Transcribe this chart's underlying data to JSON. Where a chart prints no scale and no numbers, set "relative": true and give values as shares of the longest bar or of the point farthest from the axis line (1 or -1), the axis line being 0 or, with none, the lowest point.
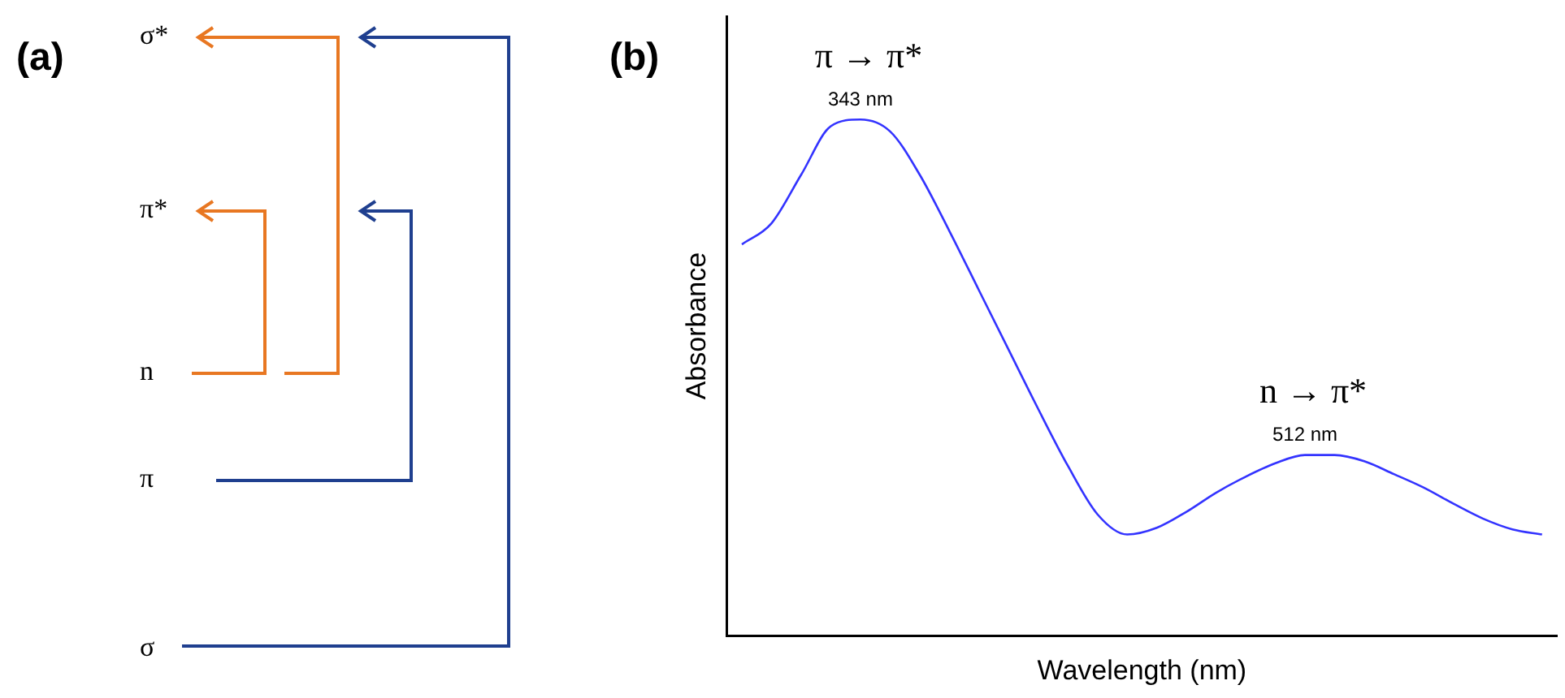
{
  "chart_data": [
    {
      "type": "other",
      "title": "(a)",
      "annotations": [
        "σ*",
        "π*",
        "n",
        "π",
        "σ"
      ]
    },
    {
      "type": "line",
      "title": "(b)",
      "xlabel": "Wavelength (nm)",
      "ylabel": "Absorbance",
      "relative": true,
      "grid": false,
      "color": "#3333ff",
      "categories": [
        null,
        null,
        null,
        null,
        null,
        null,
        null,
        null,
        null,
        null,
        null,
        null,
        null,
        null,
        null,
        null,
        null,
        null,
        null,
        null,
        null,
        null,
        null,
        null,
        null,
        null,
        null,
        null
      ],
      "values": [
        0.758,
        0.799,
        0.893,
        0.987,
        1,
        0.977,
        0.893,
        0.784,
        0.669,
        0.554,
        0.439,
        0.329,
        0.235,
        0.196,
        0.209,
        0.24,
        0.277,
        0.308,
        0.334,
        0.35,
        0.35,
        0.338,
        0.313,
        0.287,
        0.256,
        0.227,
        0.206,
        0.196
      ],
      "annotations": [
        "π → π*",
        "343 nm",
        "n → π*",
        "512 nm"
      ]
    }
  ]
}
